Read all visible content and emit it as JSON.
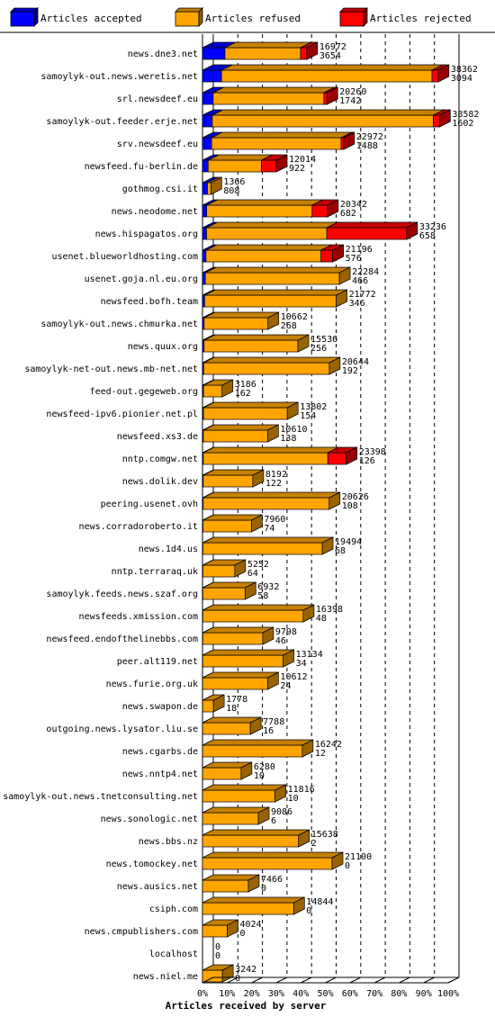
{
  "chart_data": {
    "type": "bar",
    "title": "",
    "xlabel": "Articles received by server",
    "ylabel": "",
    "xlim": [
      0,
      100
    ],
    "x_ticks": [
      "0%",
      "10%",
      "20%",
      "30%",
      "40%",
      "50%",
      "60%",
      "70%",
      "80%",
      "90%",
      "100%"
    ],
    "legend": {
      "placement": "top",
      "entries": [
        {
          "name": "Articles accepted",
          "color": "#0000ff"
        },
        {
          "name": "Articles refused",
          "color": "#ffa500"
        },
        {
          "name": "Articles rejected",
          "color": "#ff0000"
        }
      ]
    },
    "servers": [
      {
        "name": "news.dne3.net",
        "label_top": "16972",
        "label_bottom": "3654",
        "accepted": 3654,
        "refused": 12318,
        "rejected": 1000
      },
      {
        "name": "samoylyk-out.news.weretis.net",
        "label_top": "38362",
        "label_bottom": "3094",
        "accepted": 3094,
        "refused": 34268,
        "rejected": 1000
      },
      {
        "name": "srl.newsdeef.eu",
        "label_top": "20260",
        "label_bottom": "1742",
        "accepted": 1742,
        "refused": 18018,
        "rejected": 500
      },
      {
        "name": "samoylyk-out.feeder.erje.net",
        "label_top": "38582",
        "label_bottom": "1602",
        "accepted": 1602,
        "refused": 35980,
        "rejected": 1000
      },
      {
        "name": "srv.newsdeef.eu",
        "label_top": "22972",
        "label_bottom": "1488",
        "accepted": 1488,
        "refused": 21084,
        "rejected": 400
      },
      {
        "name": "newsfeed.fu-berlin.de",
        "label_top": "12014",
        "label_bottom": "922",
        "accepted": 922,
        "refused": 8692,
        "rejected": 2400
      },
      {
        "name": "gothmog.csi.it",
        "label_top": "1366",
        "label_bottom": "808",
        "accepted": 808,
        "refused": 558,
        "rejected": 0
      },
      {
        "name": "news.neodome.net",
        "label_top": "20342",
        "label_bottom": "682",
        "accepted": 682,
        "refused": 17160,
        "rejected": 2500
      },
      {
        "name": "news.hispagatos.org",
        "label_top": "33236",
        "label_bottom": "658",
        "accepted": 658,
        "refused": 19578,
        "rejected": 13000
      },
      {
        "name": "usenet.blueworldhosting.com",
        "label_top": "21196",
        "label_bottom": "576",
        "accepted": 576,
        "refused": 18720,
        "rejected": 1900
      },
      {
        "name": "usenet.goja.nl.eu.org",
        "label_top": "22284",
        "label_bottom": "466",
        "accepted": 466,
        "refused": 21818,
        "rejected": 0
      },
      {
        "name": "newsfeed.bofh.team",
        "label_top": "21772",
        "label_bottom": "346",
        "accepted": 346,
        "refused": 21426,
        "rejected": 0
      },
      {
        "name": "samoylyk-out.news.chmurka.net",
        "label_top": "10662",
        "label_bottom": "268",
        "accepted": 268,
        "refused": 10394,
        "rejected": 0
      },
      {
        "name": "news.quux.org",
        "label_top": "15536",
        "label_bottom": "256",
        "accepted": 256,
        "refused": 15280,
        "rejected": 0
      },
      {
        "name": "samoylyk-net-out.news.mb-net.net",
        "label_top": "20644",
        "label_bottom": "192",
        "accepted": 192,
        "refused": 20452,
        "rejected": 0
      },
      {
        "name": "feed-out.gegeweb.org",
        "label_top": "3186",
        "label_bottom": "162",
        "accepted": 162,
        "refused": 3024,
        "rejected": 0
      },
      {
        "name": "newsfeed-ipv6.pionier.net.pl",
        "label_top": "13802",
        "label_bottom": "154",
        "accepted": 154,
        "refused": 13648,
        "rejected": 0
      },
      {
        "name": "newsfeed.xs3.de",
        "label_top": "10610",
        "label_bottom": "138",
        "accepted": 138,
        "refused": 10472,
        "rejected": 0
      },
      {
        "name": "nntp.comgw.net",
        "label_top": "23398",
        "label_bottom": "126",
        "accepted": 126,
        "refused": 20272,
        "rejected": 3000
      },
      {
        "name": "news.dolik.dev",
        "label_top": "8192",
        "label_bottom": "122",
        "accepted": 122,
        "refused": 8070,
        "rejected": 0
      },
      {
        "name": "peering.usenet.ovh",
        "label_top": "20626",
        "label_bottom": "108",
        "accepted": 108,
        "refused": 20518,
        "rejected": 0
      },
      {
        "name": "news.corradoroberto.it",
        "label_top": "7960",
        "label_bottom": "74",
        "accepted": 74,
        "refused": 7886,
        "rejected": 0
      },
      {
        "name": "news.1d4.us",
        "label_top": "19494",
        "label_bottom": "68",
        "accepted": 68,
        "refused": 19426,
        "rejected": 0
      },
      {
        "name": "nntp.terraraq.uk",
        "label_top": "5252",
        "label_bottom": "64",
        "accepted": 64,
        "refused": 5188,
        "rejected": 0
      },
      {
        "name": "samoylyk.feeds.news.szaf.org",
        "label_top": "6932",
        "label_bottom": "58",
        "accepted": 58,
        "refused": 6874,
        "rejected": 0
      },
      {
        "name": "newsfeeds.xmission.com",
        "label_top": "16398",
        "label_bottom": "48",
        "accepted": 48,
        "refused": 16350,
        "rejected": 0
      },
      {
        "name": "newsfeed.endofthelinebbs.com",
        "label_top": "9798",
        "label_bottom": "46",
        "accepted": 46,
        "refused": 9752,
        "rejected": 0
      },
      {
        "name": "peer.alt119.net",
        "label_top": "13134",
        "label_bottom": "34",
        "accepted": 34,
        "refused": 13100,
        "rejected": 0
      },
      {
        "name": "news.furie.org.uk",
        "label_top": "10612",
        "label_bottom": "24",
        "accepted": 24,
        "refused": 10588,
        "rejected": 0
      },
      {
        "name": "news.swapon.de",
        "label_top": "1778",
        "label_bottom": "18",
        "accepted": 18,
        "refused": 1760,
        "rejected": 0
      },
      {
        "name": "outgoing.news.lysator.liu.se",
        "label_top": "7788",
        "label_bottom": "16",
        "accepted": 16,
        "refused": 7772,
        "rejected": 0
      },
      {
        "name": "news.cgarbs.de",
        "label_top": "16242",
        "label_bottom": "12",
        "accepted": 12,
        "refused": 16230,
        "rejected": 0
      },
      {
        "name": "news.nntp4.net",
        "label_top": "6280",
        "label_bottom": "10",
        "accepted": 10,
        "refused": 6270,
        "rejected": 0
      },
      {
        "name": "samoylyk-out.news.tnetconsulting.net",
        "label_top": "11816",
        "label_bottom": "10",
        "accepted": 10,
        "refused": 11806,
        "rejected": 0
      },
      {
        "name": "news.sonologic.net",
        "label_top": "9086",
        "label_bottom": "6",
        "accepted": 6,
        "refused": 9080,
        "rejected": 0
      },
      {
        "name": "news.bbs.nz",
        "label_top": "15638",
        "label_bottom": "2",
        "accepted": 2,
        "refused": 15636,
        "rejected": 0
      },
      {
        "name": "news.tomockey.net",
        "label_top": "21100",
        "label_bottom": "0",
        "accepted": 0,
        "refused": 21100,
        "rejected": 0
      },
      {
        "name": "news.ausics.net",
        "label_top": "7466",
        "label_bottom": "0",
        "accepted": 0,
        "refused": 7466,
        "rejected": 0
      },
      {
        "name": "csiph.com",
        "label_top": "14844",
        "label_bottom": "0",
        "accepted": 0,
        "refused": 14844,
        "rejected": 0
      },
      {
        "name": "news.cmpublishers.com",
        "label_top": "4024",
        "label_bottom": "0",
        "accepted": 0,
        "refused": 4024,
        "rejected": 0
      },
      {
        "name": "localhost",
        "label_top": "0",
        "label_bottom": "0",
        "accepted": 0,
        "refused": 0,
        "rejected": 0
      },
      {
        "name": "news.niel.me",
        "label_top": "3242",
        "label_bottom": "0",
        "accepted": 0,
        "refused": 3242,
        "rejected": 0
      }
    ]
  }
}
